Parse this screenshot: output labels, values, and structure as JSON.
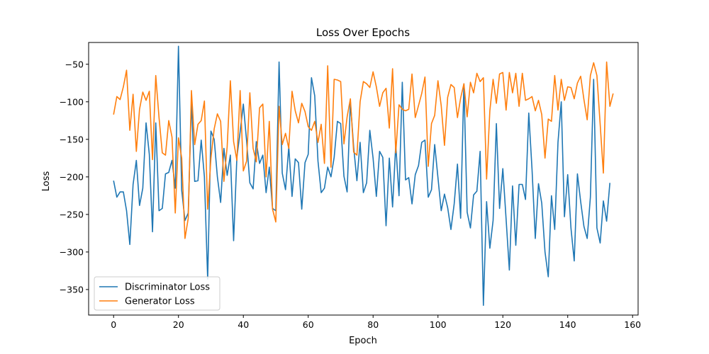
{
  "chart_data": {
    "type": "line",
    "title": "Loss Over Epochs",
    "xlabel": "Epoch",
    "ylabel": "Loss",
    "xlim": [
      -7.7,
      161.7
    ],
    "ylim": [
      -384,
      -21
    ],
    "xticks": [
      0,
      20,
      40,
      60,
      80,
      100,
      120,
      140,
      160
    ],
    "yticks": [
      -50,
      -100,
      -150,
      -200,
      -250,
      -300,
      -350
    ],
    "grid": false,
    "legend_position": "lower-left",
    "series": [
      {
        "name": "Discriminator Loss",
        "color": "#1f77b4",
        "values": [
          -205,
          -227,
          -220,
          -220,
          -245,
          -290,
          -210,
          -178,
          -238,
          -215,
          -128,
          -170,
          -273,
          -128,
          -245,
          -242,
          -196,
          -194,
          -178,
          -215,
          -26,
          -218,
          -258,
          -248,
          -100,
          -206,
          -205,
          -151,
          -200,
          -336,
          -139,
          -150,
          -200,
          -234,
          -162,
          -198,
          -171,
          -285,
          -174,
          -140,
          -103,
          -152,
          -208,
          -216,
          -153,
          -182,
          -171,
          -221,
          -187,
          -242,
          -245,
          -47,
          -195,
          -217,
          -160,
          -226,
          -176,
          -181,
          -243,
          -181,
          -170,
          -68,
          -92,
          -179,
          -221,
          -215,
          -187,
          -200,
          -174,
          -126,
          -129,
          -199,
          -220,
          -100,
          -160,
          -205,
          -154,
          -221,
          -208,
          -138,
          -175,
          -226,
          -166,
          -174,
          -265,
          -175,
          -240,
          -157,
          -225,
          -74,
          -204,
          -201,
          -236,
          -197,
          -185,
          -154,
          -151,
          -227,
          -217,
          -157,
          -201,
          -245,
          -223,
          -241,
          -270,
          -236,
          -183,
          -255,
          -76,
          -247,
          -268,
          -224,
          -219,
          -166,
          -371,
          -233,
          -295,
          -258,
          -129,
          -242,
          -189,
          -256,
          -324,
          -212,
          -291,
          -210,
          -210,
          -230,
          -115,
          -190,
          -282,
          -209,
          -235,
          -300,
          -333,
          -225,
          -270,
          -154,
          -100,
          -253,
          -197,
          -268,
          -312,
          -196,
          -233,
          -266,
          -282,
          -227,
          -70,
          -268,
          -288,
          -232,
          -259,
          -208
        ]
      },
      {
        "name": "Generator Loss",
        "color": "#ff7f0e",
        "values": [
          -117,
          -93,
          -97,
          -80,
          -58,
          -138,
          -90,
          -166,
          -110,
          -87,
          -98,
          -86,
          -177,
          -65,
          -121,
          -168,
          -171,
          -125,
          -147,
          -248,
          -148,
          -175,
          -282,
          -255,
          -85,
          -157,
          -130,
          -125,
          -99,
          -243,
          -175,
          -136,
          -116,
          -126,
          -206,
          -160,
          -72,
          -153,
          -178,
          -85,
          -192,
          -179,
          -88,
          -162,
          -180,
          -108,
          -103,
          -200,
          -126,
          -243,
          -260,
          -106,
          -157,
          -142,
          -162,
          -86,
          -112,
          -128,
          -102,
          -113,
          -133,
          -138,
          -126,
          -154,
          -130,
          -182,
          -52,
          -187,
          -70,
          -71,
          -73,
          -156,
          -120,
          -96,
          -167,
          -171,
          -100,
          -73,
          -76,
          -81,
          -60,
          -80,
          -106,
          -88,
          -82,
          -135,
          -56,
          -168,
          -104,
          -110,
          -112,
          -110,
          -63,
          -121,
          -105,
          -89,
          -67,
          -186,
          -129,
          -118,
          -72,
          -105,
          -158,
          -94,
          -77,
          -81,
          -121,
          -95,
          -76,
          -120,
          -74,
          -88,
          -62,
          -73,
          -68,
          -203,
          -112,
          -70,
          -102,
          -63,
          -61,
          -111,
          -61,
          -88,
          -62,
          -106,
          -62,
          -98,
          -96,
          -93,
          -112,
          -98,
          -117,
          -175,
          -123,
          -126,
          -65,
          -111,
          -70,
          -98,
          -80,
          -81,
          -96,
          -75,
          -66,
          -97,
          -124,
          -65,
          -48,
          -65,
          -130,
          -195,
          -47,
          -106,
          -89
        ]
      }
    ]
  }
}
